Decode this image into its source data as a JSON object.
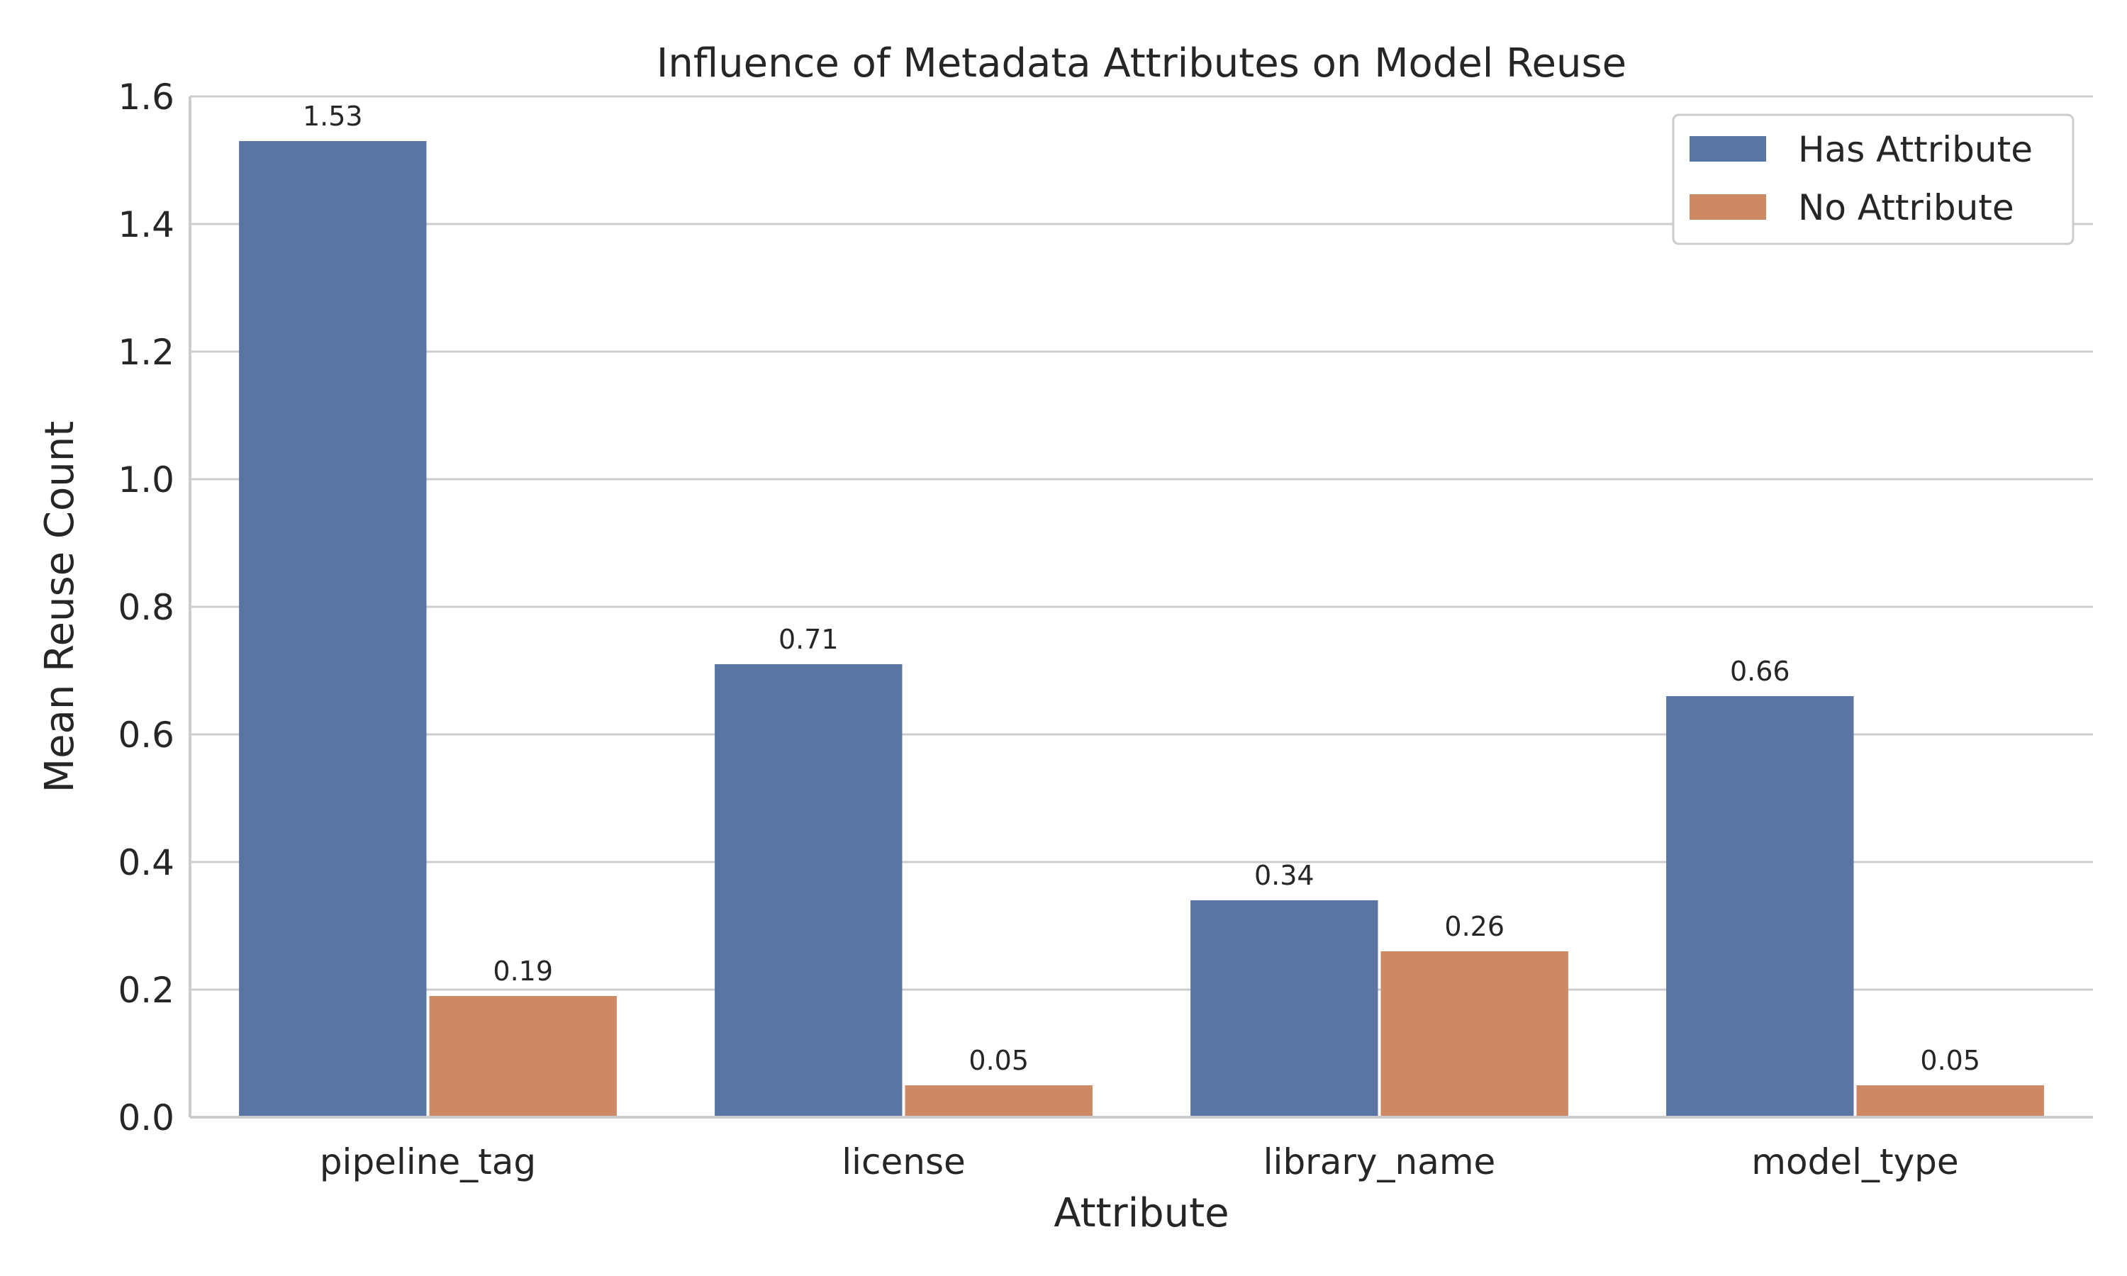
{
  "chart_data": {
    "type": "bar",
    "title": "Influence of Metadata Attributes on Model Reuse",
    "xlabel": "Attribute",
    "ylabel": "Mean Reuse Count",
    "categories": [
      "pipeline_tag",
      "license",
      "library_name",
      "model_type"
    ],
    "series": [
      {
        "name": "Has Attribute",
        "color": "#5975a4",
        "values": [
          1.53,
          0.71,
          0.34,
          0.66
        ],
        "labels": [
          "1.53",
          "0.71",
          "0.34",
          "0.66"
        ]
      },
      {
        "name": "No Attribute",
        "color": "#cc8963",
        "values": [
          0.19,
          0.05,
          0.26,
          0.05
        ],
        "labels": [
          "0.19",
          "0.05",
          "0.26",
          "0.05"
        ]
      }
    ],
    "ylim": [
      0,
      1.6
    ],
    "yticks": [
      0.0,
      0.2,
      0.4,
      0.6,
      0.8,
      1.0,
      1.2,
      1.4,
      1.6
    ],
    "ytick_labels": [
      "0.0",
      "0.2",
      "0.4",
      "0.6",
      "0.8",
      "1.0",
      "1.2",
      "1.4",
      "1.6"
    ],
    "grid": true,
    "legend_position": "top-right"
  }
}
